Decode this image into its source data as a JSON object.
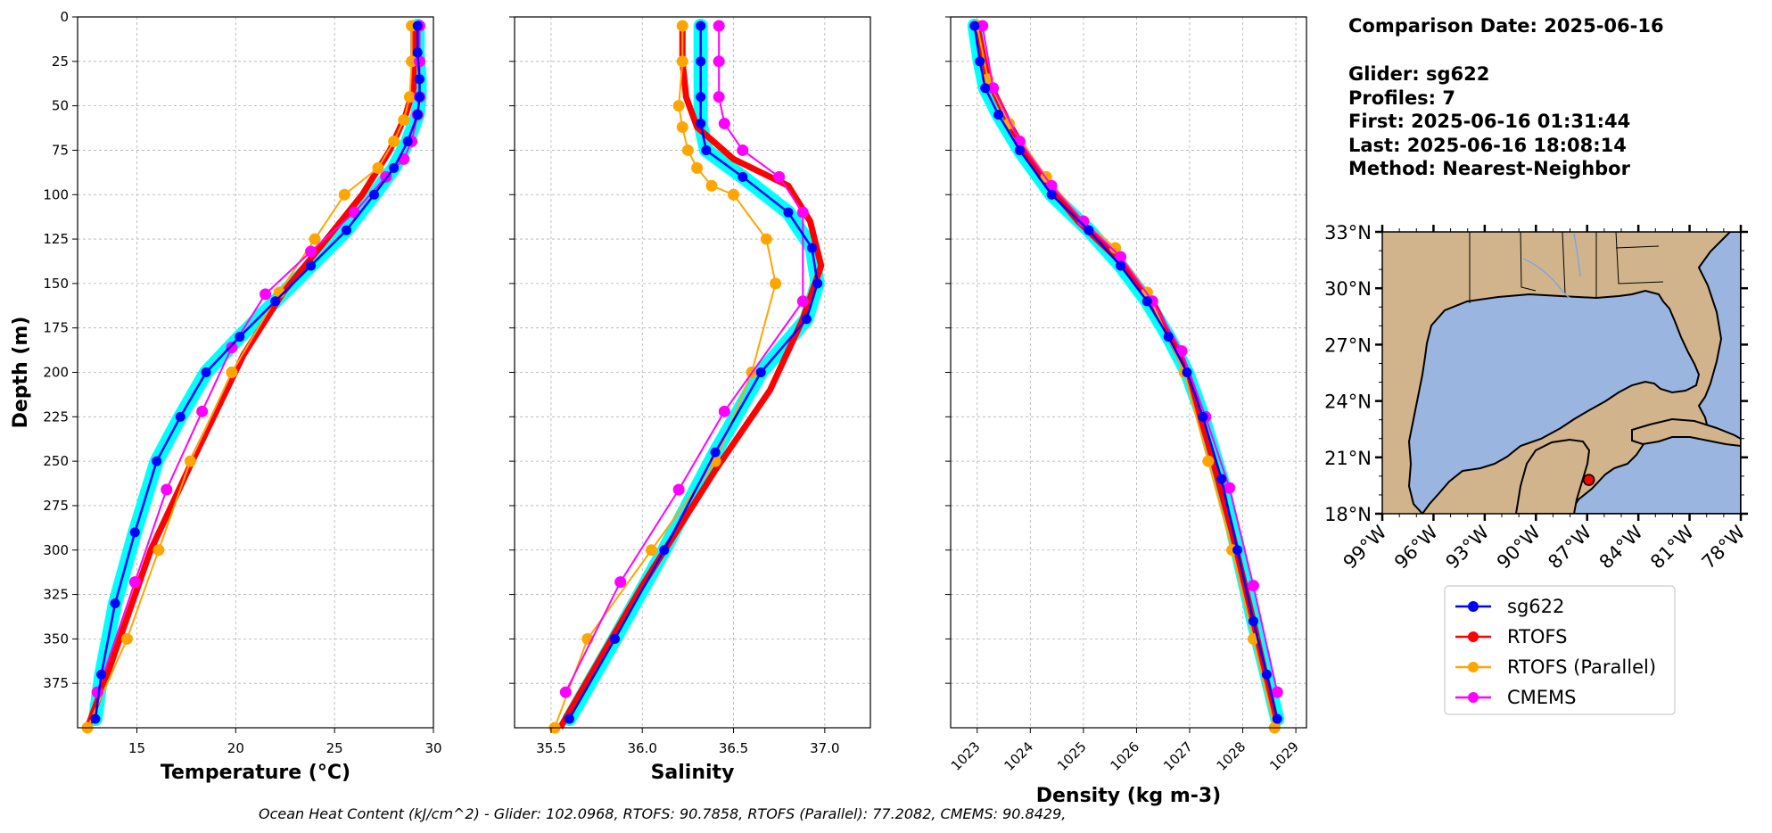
{
  "info": {
    "comparison_date": "Comparison Date: 2025-06-16",
    "glider": "Glider: sg622",
    "profiles": "Profiles: 7",
    "first": "First: 2025-06-16 01:31:44",
    "last": "Last: 2025-06-16 18:08:14",
    "method": "Method: Nearest-Neighbor"
  },
  "footer": "Ocean Heat Content (kJ/cm^2) - Glider: 102.0968,  RTOFS: 90.7858,  RTOFS (Parallel): 77.2082,  CMEMS: 90.8429,",
  "colors": {
    "glider": "#0000ff",
    "glider_envelope": "#00ffff",
    "rtofs": "#ff0000",
    "rtofs_parallel": "#ffa500",
    "cmems": "#ff00ff",
    "land": "#d2b48c",
    "water": "#9ab6e0"
  },
  "chart_data": [
    {
      "type": "line",
      "xlabel": "Temperature (°C)",
      "ylabel": "Depth (m)",
      "xlim": [
        12,
        30
      ],
      "ylim": [
        400,
        0
      ],
      "xticks": [
        "15",
        "20",
        "25",
        "30"
      ],
      "yticks": [
        "0",
        "25",
        "50",
        "75",
        "100",
        "125",
        "150",
        "175",
        "200",
        "225",
        "250",
        "275",
        "300",
        "325",
        "350",
        "375"
      ],
      "grid": true,
      "series": [
        {
          "name": "sg622",
          "x": [
            29.2,
            29.2,
            29.3,
            29.3,
            29.2,
            28.7,
            28.0,
            27.0,
            25.6,
            23.8,
            22.0,
            20.2,
            18.5,
            17.2,
            16.0,
            14.9,
            13.9,
            13.2,
            12.9
          ],
          "y": [
            5,
            20,
            35,
            45,
            55,
            70,
            85,
            100,
            120,
            140,
            160,
            180,
            200,
            225,
            250,
            290,
            330,
            370,
            395
          ]
        },
        {
          "name": "RTOFS",
          "x": [
            29.0,
            29.0,
            29.0,
            28.6,
            27.8,
            26.4,
            24.6,
            22.4,
            20.4,
            17.8,
            15.7,
            13.5,
            12.5
          ],
          "y": [
            5,
            25,
            40,
            55,
            75,
            100,
            125,
            155,
            190,
            250,
            300,
            370,
            400
          ]
        },
        {
          "name": "RTOFS (Parallel)",
          "x": [
            28.9,
            28.9,
            28.8,
            28.5,
            28.0,
            27.2,
            25.5,
            24.0,
            22.2,
            19.8,
            17.7,
            16.1,
            14.5,
            12.5
          ],
          "y": [
            5,
            25,
            45,
            58,
            70,
            85,
            100,
            125,
            155,
            200,
            250,
            300,
            350,
            400
          ]
        },
        {
          "name": "CMEMS",
          "x": [
            29.3,
            29.3,
            29.3,
            29.2,
            28.9,
            28.5,
            27.6,
            26.0,
            23.8,
            21.5,
            19.8,
            18.3,
            16.5,
            14.9,
            13.0
          ],
          "y": [
            5,
            25,
            45,
            55,
            70,
            80,
            90,
            110,
            132,
            156,
            186,
            222,
            266,
            318,
            380
          ]
        }
      ]
    },
    {
      "type": "line",
      "xlabel": "Salinity",
      "ylabel": "",
      "xlim": [
        35.3,
        37.25
      ],
      "ylim": [
        400,
        0
      ],
      "xticks": [
        "35.5",
        "36.0",
        "36.5",
        "37.0"
      ],
      "grid": true,
      "series": [
        {
          "name": "sg622",
          "x": [
            36.32,
            36.32,
            36.32,
            36.32,
            36.35,
            36.55,
            36.8,
            36.93,
            36.96,
            36.9,
            36.65,
            36.4,
            36.12,
            35.85,
            35.6
          ],
          "y": [
            5,
            25,
            45,
            60,
            75,
            90,
            110,
            130,
            150,
            170,
            200,
            245,
            300,
            350,
            395
          ]
        },
        {
          "name": "RTOFS",
          "x": [
            36.22,
            36.22,
            36.24,
            36.3,
            36.5,
            36.8,
            36.92,
            36.98,
            36.88,
            36.7,
            36.4,
            36.0,
            35.55
          ],
          "y": [
            5,
            25,
            45,
            62,
            80,
            95,
            115,
            140,
            170,
            210,
            255,
            320,
            400
          ]
        },
        {
          "name": "RTOFS (Parallel)",
          "x": [
            36.22,
            36.22,
            36.2,
            36.22,
            36.25,
            36.3,
            36.38,
            36.5,
            36.68,
            36.73,
            36.6,
            36.4,
            36.05,
            35.7,
            35.52
          ],
          "y": [
            5,
            25,
            50,
            62,
            75,
            85,
            95,
            100,
            125,
            150,
            200,
            250,
            300,
            350,
            400
          ]
        },
        {
          "name": "CMEMS",
          "x": [
            36.42,
            36.42,
            36.42,
            36.45,
            36.55,
            36.75,
            36.88,
            36.88,
            36.45,
            36.2,
            35.88,
            35.58
          ],
          "y": [
            5,
            25,
            45,
            60,
            75,
            90,
            110,
            160,
            222,
            266,
            318,
            380
          ]
        }
      ]
    },
    {
      "type": "line",
      "xlabel": "Density (kg m-3)",
      "ylabel": "",
      "xlim": [
        1022.5,
        1029.2
      ],
      "ylim": [
        400,
        0
      ],
      "xticks": [
        "1023",
        "1024",
        "1025",
        "1026",
        "1027",
        "1028",
        "1029"
      ],
      "grid": true,
      "series": [
        {
          "name": "sg622",
          "x": [
            1022.95,
            1023.05,
            1023.15,
            1023.4,
            1023.8,
            1024.4,
            1025.1,
            1025.7,
            1026.2,
            1026.6,
            1026.95,
            1027.25,
            1027.6,
            1027.9,
            1028.2,
            1028.45,
            1028.65
          ],
          "y": [
            5,
            25,
            40,
            55,
            75,
            100,
            120,
            140,
            160,
            180,
            200,
            225,
            260,
            300,
            340,
            370,
            395
          ]
        },
        {
          "name": "RTOFS",
          "x": [
            1023.0,
            1023.2,
            1023.6,
            1024.2,
            1024.9,
            1025.6,
            1026.3,
            1026.95,
            1027.35,
            1027.8,
            1028.2,
            1028.65
          ],
          "y": [
            5,
            35,
            60,
            90,
            115,
            135,
            160,
            200,
            240,
            290,
            340,
            400
          ]
        },
        {
          "name": "RTOFS (Parallel)",
          "x": [
            1023.0,
            1023.2,
            1023.6,
            1024.3,
            1025.0,
            1025.6,
            1026.2,
            1026.9,
            1027.35,
            1027.8,
            1028.2,
            1028.6
          ],
          "y": [
            5,
            35,
            60,
            90,
            115,
            130,
            155,
            200,
            250,
            300,
            350,
            400
          ]
        },
        {
          "name": "CMEMS",
          "x": [
            1023.1,
            1023.3,
            1023.8,
            1024.4,
            1025.0,
            1025.7,
            1026.3,
            1026.85,
            1027.3,
            1027.75,
            1028.2,
            1028.65
          ],
          "y": [
            5,
            40,
            70,
            95,
            115,
            135,
            160,
            188,
            225,
            265,
            320,
            380
          ]
        }
      ]
    }
  ],
  "map": {
    "lat_ticks": [
      "33°N",
      "30°N",
      "27°N",
      "24°N",
      "21°N",
      "18°N"
    ],
    "lon_ticks": [
      "99°W",
      "96°W",
      "93°W",
      "90°W",
      "87°W",
      "84°W",
      "81°W",
      "78°W"
    ],
    "extent": {
      "lon": [
        -99,
        -78
      ],
      "lat": [
        18,
        33
      ]
    },
    "glider_location": {
      "lon": -86.9,
      "lat": 19.8
    }
  },
  "legend": {
    "placement": "below-map",
    "entries": [
      "sg622",
      "RTOFS",
      "RTOFS (Parallel)",
      "CMEMS"
    ]
  }
}
